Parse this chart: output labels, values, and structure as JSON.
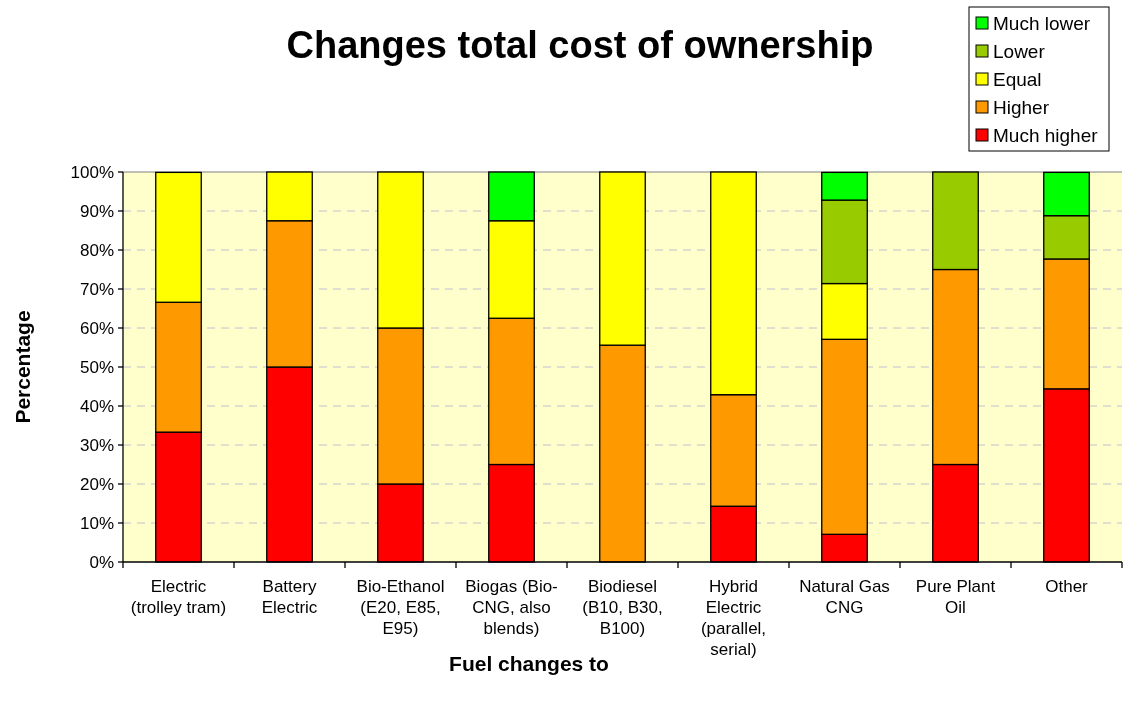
{
  "chart_data": {
    "type": "bar",
    "title": "Changes total cost of ownership",
    "xlabel": "Fuel changes to",
    "ylabel": "Percentage",
    "categories": [
      "Electric (trolley tram)",
      "Battery Electric",
      "Bio-Ethanol (E20, E85, E95)",
      "Biogas (Bio-CNG, also blends)",
      "Biodiesel (B10, B30, B100)",
      "Hybrid Electric (parallel, serial)",
      "Natural Gas CNG",
      "Pure Plant Oil",
      "Other"
    ],
    "series": [
      {
        "name": "Much higher",
        "color": "#ff0000",
        "values": [
          33.3,
          50,
          20,
          25,
          0,
          14.3,
          7.1,
          25,
          44.4
        ]
      },
      {
        "name": "Higher",
        "color": "#ff9900",
        "values": [
          33.3,
          37.5,
          40,
          37.5,
          55.6,
          28.6,
          50,
          50,
          33.3
        ]
      },
      {
        "name": "Equal",
        "color": "#ffff00",
        "values": [
          33.3,
          12.5,
          40,
          25,
          44.4,
          57.1,
          14.3,
          0,
          0
        ]
      },
      {
        "name": "Lower",
        "color": "#99cc00",
        "values": [
          0,
          0,
          0,
          0,
          0,
          0,
          21.4,
          25,
          11.1
        ]
      },
      {
        "name": "Much lower",
        "color": "#00ff00",
        "values": [
          0,
          0,
          0,
          12.5,
          0,
          0,
          7.1,
          0,
          11.1
        ]
      }
    ],
    "stacked": true,
    "ylim": [
      0,
      100
    ],
    "yticks": [
      {
        "value": 0,
        "label": "0%"
      },
      {
        "value": 10,
        "label": "10%"
      },
      {
        "value": 20,
        "label": "20%"
      },
      {
        "value": 30,
        "label": "30%"
      },
      {
        "value": 40,
        "label": "40%"
      },
      {
        "value": 50,
        "label": "50%"
      },
      {
        "value": 60,
        "label": "60%"
      },
      {
        "value": 70,
        "label": "70%"
      },
      {
        "value": 80,
        "label": "80%"
      },
      {
        "value": 90,
        "label": "90%"
      },
      {
        "value": 100,
        "label": "100%"
      }
    ],
    "grid": "y",
    "legend": "top right"
  }
}
